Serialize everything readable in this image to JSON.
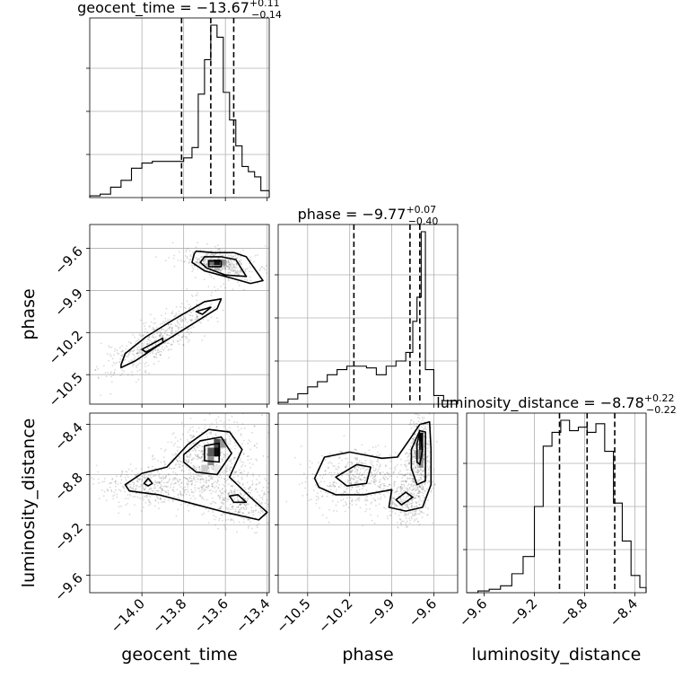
{
  "chart_data": {
    "type": "corner",
    "parameters": [
      "geocent_time",
      "phase",
      "luminosity_distance"
    ],
    "grid": true,
    "titles": [
      {
        "label": "geocent_time",
        "median": "−13.67",
        "plus": "+0.11",
        "minus": "−0.14"
      },
      {
        "label": "phase",
        "median": "−9.77",
        "plus": "+0.07",
        "minus": "−0.40"
      },
      {
        "label": "luminosity_distance",
        "median": "−8.78",
        "plus": "+0.22",
        "minus": "−0.22"
      }
    ],
    "axes": {
      "geocent_time": {
        "range": [
          -14.25,
          -13.39
        ],
        "ticks": [
          -14.0,
          -13.8,
          -13.6,
          -13.4
        ],
        "tick_labels": [
          "−14.0",
          "−13.8",
          "−13.6",
          "−13.4"
        ]
      },
      "phase": {
        "range": [
          -10.71,
          -9.43
        ],
        "ticks": [
          -10.5,
          -10.2,
          -9.9,
          -9.6
        ],
        "tick_labels": [
          "−10.5",
          "−10.2",
          "−9.9",
          "−9.6"
        ]
      },
      "luminosity_distance": {
        "range": [
          -9.74,
          -8.31
        ],
        "ticks": [
          -9.6,
          -9.2,
          -8.8,
          -8.4
        ],
        "tick_labels": [
          "−9.6",
          "−9.2",
          "−8.8",
          "−8.4"
        ]
      }
    },
    "histograms": {
      "geocent_time": {
        "bin_edges": [
          -14.25,
          -14.2,
          -14.15,
          -14.1,
          -14.05,
          -14.0,
          -13.95,
          -13.9,
          -13.85,
          -13.8,
          -13.76,
          -13.73,
          -13.7,
          -13.67,
          -13.64,
          -13.61,
          -13.58,
          -13.55,
          -13.52,
          -13.49,
          -13.46,
          -13.43,
          -13.39
        ],
        "counts": [
          0.01,
          0.02,
          0.06,
          0.1,
          0.17,
          0.2,
          0.21,
          0.21,
          0.21,
          0.23,
          0.29,
          0.6,
          0.8,
          1.0,
          0.93,
          0.61,
          0.45,
          0.3,
          0.18,
          0.15,
          0.12,
          0.04
        ]
      },
      "phase": {
        "bin_edges": [
          -10.71,
          -10.64,
          -10.57,
          -10.5,
          -10.43,
          -10.36,
          -10.29,
          -10.22,
          -10.15,
          -10.08,
          -10.01,
          -9.94,
          -9.87,
          -9.8,
          -9.75,
          -9.72,
          -9.69,
          -9.66,
          -9.6,
          -9.53,
          -9.43
        ],
        "counts": [
          0.01,
          0.03,
          0.06,
          0.1,
          0.13,
          0.17,
          0.2,
          0.22,
          0.22,
          0.21,
          0.17,
          0.22,
          0.25,
          0.3,
          0.48,
          0.62,
          1.0,
          0.2,
          0.05,
          0.02
        ]
      },
      "luminosity_distance": {
        "bin_edges": [
          -9.74,
          -9.65,
          -9.56,
          -9.47,
          -9.38,
          -9.29,
          -9.2,
          -9.13,
          -9.06,
          -8.99,
          -8.92,
          -8.85,
          -8.78,
          -8.71,
          -8.64,
          -8.57,
          -8.5,
          -8.43,
          -8.36,
          -8.31
        ],
        "counts": [
          0.0,
          0.01,
          0.02,
          0.04,
          0.11,
          0.21,
          0.5,
          0.85,
          0.93,
          1.0,
          0.94,
          0.96,
          0.93,
          0.98,
          0.82,
          0.52,
          0.3,
          0.1,
          0.03
        ]
      }
    },
    "quantiles": {
      "geocent_time": [
        -13.81,
        -13.67,
        -13.56
      ],
      "phase": [
        -10.17,
        -9.77,
        -9.7
      ],
      "luminosity_distance": [
        -9.0,
        -8.78,
        -8.56
      ]
    },
    "scatter_2d": [
      {
        "x": "geocent_time",
        "y": "phase",
        "clusters": [
          {
            "cx": -13.62,
            "cy": -9.71,
            "sx": 0.09,
            "sy": 0.05,
            "rho": -0.3,
            "n": 420
          },
          {
            "cx": -13.92,
            "cy": -10.24,
            "sx": 0.14,
            "sy": 0.15,
            "rho": 0.85,
            "n": 520
          }
        ],
        "contours": [
          [
            [
              -13.74,
              -9.62
            ],
            [
              -13.66,
              -9.63
            ],
            [
              -13.56,
              -9.63
            ],
            [
              -13.5,
              -9.66
            ],
            [
              -13.42,
              -9.83
            ],
            [
              -13.48,
              -9.85
            ],
            [
              -13.6,
              -9.8
            ],
            [
              -13.7,
              -9.76
            ],
            [
              -13.76,
              -9.7
            ],
            [
              -13.75,
              -9.64
            ]
          ],
          [
            [
              -13.7,
              -9.66
            ],
            [
              -13.62,
              -9.66
            ],
            [
              -13.55,
              -9.68
            ],
            [
              -13.5,
              -9.8
            ],
            [
              -13.6,
              -9.79
            ],
            [
              -13.69,
              -9.74
            ],
            [
              -13.72,
              -9.7
            ]
          ],
          [
            [
              -13.68,
              -9.69
            ],
            [
              -13.62,
              -9.69
            ],
            [
              -13.62,
              -9.73
            ],
            [
              -13.68,
              -9.73
            ]
          ],
          [
            [
              -14.1,
              -10.43
            ],
            [
              -14.08,
              -10.35
            ],
            [
              -13.98,
              -10.23
            ],
            [
              -13.85,
              -10.11
            ],
            [
              -13.7,
              -9.98
            ],
            [
              -13.62,
              -9.96
            ],
            [
              -13.64,
              -10.03
            ],
            [
              -13.78,
              -10.16
            ],
            [
              -13.92,
              -10.29
            ],
            [
              -14.03,
              -10.4
            ],
            [
              -14.1,
              -10.45
            ]
          ],
          [
            [
              -14.0,
              -10.32
            ],
            [
              -13.9,
              -10.24
            ],
            [
              -13.9,
              -10.27
            ],
            [
              -13.98,
              -10.34
            ]
          ],
          [
            [
              -13.74,
              -10.05
            ],
            [
              -13.67,
              -10.02
            ],
            [
              -13.71,
              -10.07
            ]
          ]
        ],
        "cells": [
          {
            "x": -13.64,
            "y": -9.7,
            "v": 0.92
          },
          {
            "x": -13.67,
            "y": -9.7,
            "v": 0.55
          },
          {
            "x": -13.61,
            "y": -9.7,
            "v": 0.45
          },
          {
            "x": -13.64,
            "y": -9.74,
            "v": 0.3
          }
        ]
      },
      {
        "x": "geocent_time",
        "y": "luminosity_distance",
        "clusters": [
          {
            "cx": -13.69,
            "cy": -8.68,
            "sx": 0.11,
            "sy": 0.15,
            "rho": 0.2,
            "n": 600
          },
          {
            "cx": -13.97,
            "cy": -8.89,
            "sx": 0.11,
            "sy": 0.08,
            "rho": 0.0,
            "n": 350
          },
          {
            "cx": -13.53,
            "cy": -9.0,
            "sx": 0.1,
            "sy": 0.12,
            "rho": -0.3,
            "n": 400
          }
        ],
        "contours": [
          [
            [
              -14.08,
              -8.88
            ],
            [
              -14.0,
              -8.79
            ],
            [
              -13.88,
              -8.74
            ],
            [
              -13.78,
              -8.56
            ],
            [
              -13.68,
              -8.44
            ],
            [
              -13.58,
              -8.46
            ],
            [
              -13.52,
              -8.6
            ],
            [
              -13.58,
              -8.82
            ],
            [
              -13.48,
              -8.98
            ],
            [
              -13.4,
              -9.1
            ],
            [
              -13.44,
              -9.16
            ],
            [
              -13.6,
              -9.1
            ],
            [
              -13.76,
              -9.03
            ],
            [
              -13.92,
              -8.96
            ],
            [
              -14.06,
              -8.93
            ]
          ],
          [
            [
              -13.8,
              -8.64
            ],
            [
              -13.72,
              -8.53
            ],
            [
              -13.62,
              -8.5
            ],
            [
              -13.57,
              -8.63
            ],
            [
              -13.64,
              -8.8
            ],
            [
              -13.74,
              -8.78
            ],
            [
              -13.8,
              -8.7
            ]
          ],
          [
            [
              -13.7,
              -8.57
            ],
            [
              -13.63,
              -8.55
            ],
            [
              -13.63,
              -8.7
            ],
            [
              -13.7,
              -8.69
            ]
          ],
          [
            [
              -13.99,
              -8.87
            ],
            [
              -13.97,
              -8.83
            ],
            [
              -13.95,
              -8.87
            ],
            [
              -13.97,
              -8.89
            ]
          ],
          [
            [
              -13.58,
              -8.97
            ],
            [
              -13.54,
              -8.96
            ],
            [
              -13.5,
              -9.02
            ],
            [
              -13.56,
              -9.02
            ]
          ]
        ],
        "cells": [
          {
            "x": -13.64,
            "y": -8.62,
            "v": 0.95
          },
          {
            "x": -13.64,
            "y": -8.55,
            "v": 0.7
          },
          {
            "x": -13.67,
            "y": -8.62,
            "v": 0.65
          },
          {
            "x": -13.67,
            "y": -8.69,
            "v": 0.45
          },
          {
            "x": -13.61,
            "y": -8.55,
            "v": 0.4
          },
          {
            "x": -13.7,
            "y": -8.76,
            "v": 0.2
          },
          {
            "x": -13.64,
            "y": -8.76,
            "v": 0.08
          }
        ]
      },
      {
        "x": "phase",
        "y": "luminosity_distance",
        "clusters": [
          {
            "cx": -10.12,
            "cy": -8.84,
            "sx": 0.17,
            "sy": 0.12,
            "rho": 0.0,
            "n": 520
          },
          {
            "cx": -9.7,
            "cy": -8.64,
            "sx": 0.04,
            "sy": 0.17,
            "rho": 0.0,
            "n": 450
          },
          {
            "cx": -9.78,
            "cy": -8.99,
            "sx": 0.07,
            "sy": 0.11,
            "rho": 0.0,
            "n": 300
          }
        ],
        "contours": [
          [
            [
              -10.45,
              -8.83
            ],
            [
              -10.38,
              -8.66
            ],
            [
              -10.2,
              -8.62
            ],
            [
              -9.97,
              -8.67
            ],
            [
              -9.86,
              -8.66
            ],
            [
              -9.76,
              -8.5
            ],
            [
              -9.7,
              -8.4
            ],
            [
              -9.63,
              -8.38
            ],
            [
              -9.62,
              -8.6
            ],
            [
              -9.62,
              -8.88
            ],
            [
              -9.68,
              -9.06
            ],
            [
              -9.8,
              -9.09
            ],
            [
              -9.92,
              -9.06
            ],
            [
              -9.9,
              -8.92
            ],
            [
              -10.1,
              -8.96
            ],
            [
              -10.3,
              -8.96
            ],
            [
              -10.42,
              -8.9
            ]
          ],
          [
            [
              -10.3,
              -8.82
            ],
            [
              -10.15,
              -8.72
            ],
            [
              -10.05,
              -8.74
            ],
            [
              -10.08,
              -8.87
            ],
            [
              -10.22,
              -8.89
            ]
          ],
          [
            [
              -9.76,
              -8.6
            ],
            [
              -9.7,
              -8.45
            ],
            [
              -9.66,
              -8.46
            ],
            [
              -9.66,
              -8.85
            ],
            [
              -9.72,
              -8.88
            ],
            [
              -9.76,
              -8.75
            ]
          ],
          [
            [
              -9.72,
              -8.55
            ],
            [
              -9.7,
              -8.47
            ],
            [
              -9.68,
              -8.6
            ],
            [
              -9.7,
              -8.72
            ],
            [
              -9.72,
              -8.7
            ]
          ],
          [
            [
              -9.87,
              -9.0
            ],
            [
              -9.8,
              -8.94
            ],
            [
              -9.75,
              -8.98
            ],
            [
              -9.83,
              -9.04
            ]
          ]
        ],
        "cells": [
          {
            "x": -9.69,
            "y": -8.5,
            "v": 0.95
          },
          {
            "x": -9.69,
            "y": -8.57,
            "v": 0.85
          },
          {
            "x": -9.69,
            "y": -8.64,
            "v": 0.6
          },
          {
            "x": -9.72,
            "y": -8.64,
            "v": 0.35
          },
          {
            "x": -9.69,
            "y": -8.71,
            "v": 0.45
          }
        ]
      }
    ]
  }
}
